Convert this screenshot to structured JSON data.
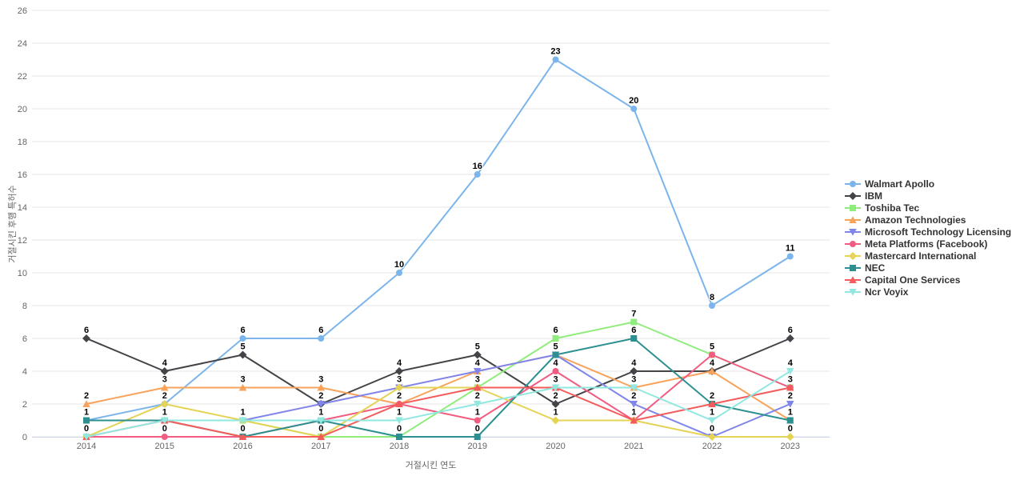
{
  "chart_data": {
    "type": "line",
    "title": "",
    "xlabel": "거절시킨 연도",
    "ylabel": "거절시킨 후행 특허수",
    "categories": [
      "2014",
      "2015",
      "2016",
      "2017",
      "2018",
      "2019",
      "2020",
      "2021",
      "2022",
      "2023"
    ],
    "ylim": [
      0,
      26
    ],
    "ytick_step": 2,
    "grid": true,
    "legend_position": "right",
    "colors": {
      "gridline": "#e6e6e6",
      "axis_line": "#ccd6eb",
      "tick_label": "#666666",
      "axis_title": "#666666",
      "data_label": "#000000",
      "legend_text": "#333333"
    },
    "series": [
      {
        "name": "Walmart Apollo",
        "color": "#7cb5ec",
        "marker": "circle",
        "values": [
          1,
          2,
          6,
          6,
          10,
          16,
          23,
          20,
          8,
          11
        ]
      },
      {
        "name": "IBM",
        "color": "#434348",
        "marker": "diamond",
        "values": [
          6,
          4,
          5,
          2,
          4,
          5,
          2,
          4,
          4,
          6
        ]
      },
      {
        "name": "Toshiba Tec",
        "color": "#90ed7d",
        "marker": "square",
        "values": [
          null,
          null,
          1,
          0,
          0,
          3,
          6,
          7,
          5,
          3
        ]
      },
      {
        "name": "Amazon Technologies",
        "color": "#f7a35c",
        "marker": "triangle",
        "values": [
          2,
          3,
          3,
          3,
          2,
          4,
          5,
          3,
          4,
          1
        ]
      },
      {
        "name": "Microsoft Technology Licensing",
        "color": "#8085e9",
        "marker": "triangle-down",
        "values": [
          null,
          null,
          1,
          2,
          3,
          4,
          5,
          2,
          0,
          2
        ]
      },
      {
        "name": "Meta Platforms (Facebook)",
        "color": "#f15c80",
        "marker": "circle",
        "values": [
          0,
          0,
          0,
          1,
          2,
          1,
          4,
          1,
          5,
          3
        ]
      },
      {
        "name": "Mastercard International",
        "color": "#e4d354",
        "marker": "diamond",
        "values": [
          0,
          2,
          1,
          0,
          3,
          3,
          1,
          1,
          0,
          0
        ]
      },
      {
        "name": "NEC",
        "color": "#2b908f",
        "marker": "square",
        "values": [
          1,
          1,
          0,
          1,
          0,
          0,
          5,
          6,
          2,
          1
        ]
      },
      {
        "name": "Capital One Services",
        "color": "#f45b5b",
        "marker": "triangle",
        "values": [
          0,
          1,
          0,
          0,
          2,
          3,
          3,
          1,
          2,
          3
        ]
      },
      {
        "name": "Ncr Voyix",
        "color": "#91e8e1",
        "marker": "triangle-down",
        "values": [
          0,
          1,
          1,
          1,
          1,
          2,
          3,
          3,
          1,
          4
        ]
      }
    ]
  }
}
